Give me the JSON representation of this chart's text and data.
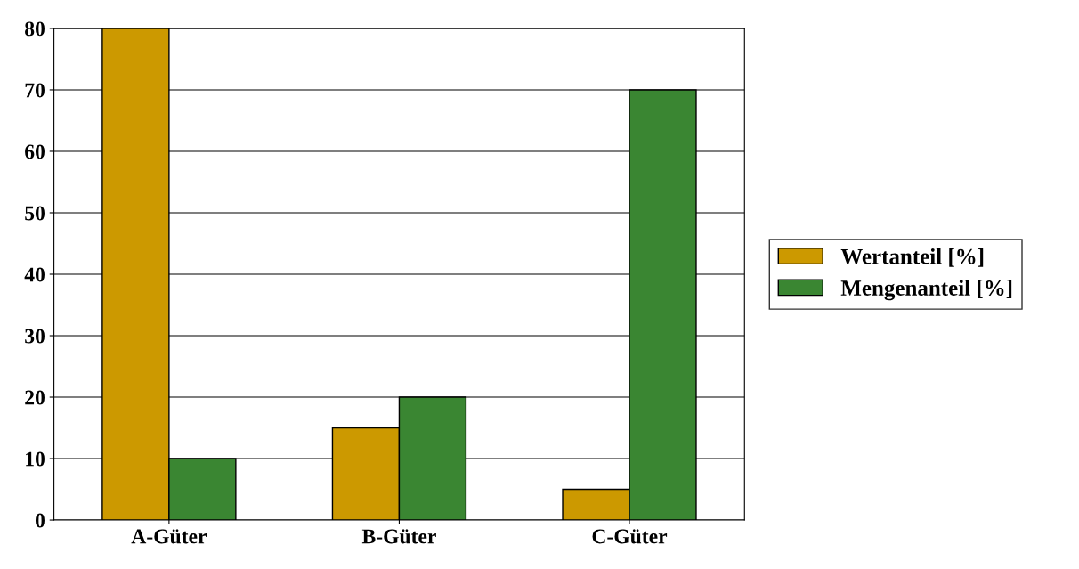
{
  "chart_data": {
    "type": "bar",
    "categories": [
      "A-Güter",
      "B-Güter",
      "C-Güter"
    ],
    "series": [
      {
        "name": "Wertanteil [%]",
        "color": "#cc9900",
        "values": [
          80,
          15,
          5
        ]
      },
      {
        "name": "Mengenanteil [%]",
        "color": "#3a8632",
        "values": [
          10,
          20,
          70
        ]
      }
    ],
    "ylim": [
      0,
      80
    ],
    "yticks": [
      0,
      10,
      20,
      30,
      40,
      50,
      60,
      70,
      80
    ],
    "grid": "y",
    "legend": "right"
  }
}
